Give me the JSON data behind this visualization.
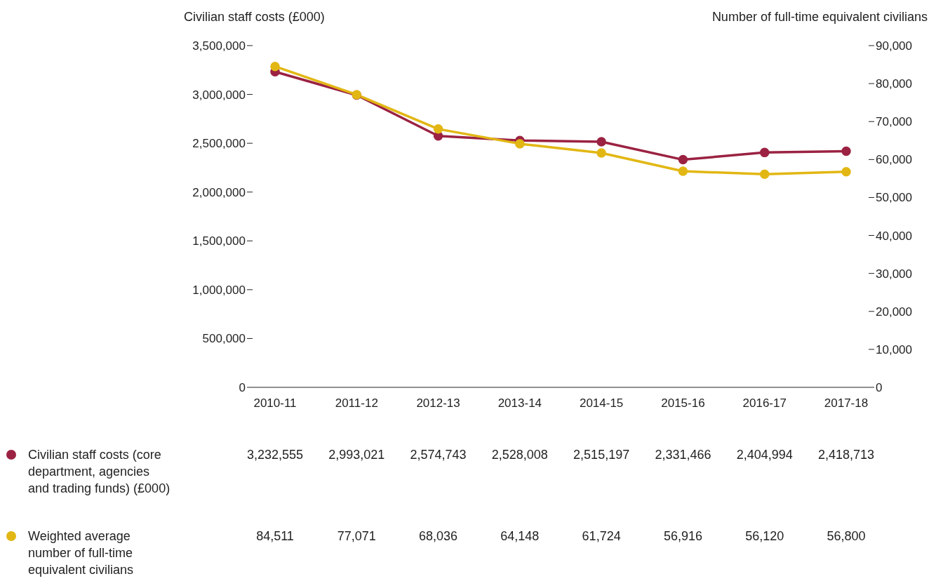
{
  "chart_data": {
    "type": "line",
    "ylabel": "Civilian staff costs (£000)",
    "y2label": "Number of full-time equivalent civilians",
    "categories": [
      "2010-11",
      "2011-12",
      "2012-13",
      "2013-14",
      "2014-15",
      "2015-16",
      "2016-17",
      "2017-18"
    ],
    "series": [
      {
        "name": "Civilian staff costs (core department, agencies and trading funds) (£000)",
        "color": "#9b2242",
        "values": [
          3232555,
          2993021,
          2574743,
          2528008,
          2515197,
          2331466,
          2404994,
          2418713
        ],
        "value_labels": [
          "3,232,555",
          "2,993,021",
          "2,574,743",
          "2,528,008",
          "2,515,197",
          "2,331,466",
          "2,404,994",
          "2,418,713"
        ]
      },
      {
        "name": "Weighted average number of full-time equivalent civilians",
        "color": "#e2b714",
        "axis": "y2",
        "values": [
          84511,
          77071,
          68036,
          64148,
          61724,
          56916,
          56120,
          56800
        ],
        "value_labels": [
          "84,511",
          "77,071",
          "68,036",
          "64,148",
          "61,724",
          "56,916",
          "56,120",
          "56,800"
        ]
      }
    ],
    "ylim": [
      0,
      3500000
    ],
    "yticks": [
      0,
      {
        "value": 500000,
        "label": "500,000"
      },
      {
        "value": 1000000,
        "label": "1,000,000"
      },
      {
        "value": 1500000,
        "label": "1,500,000"
      },
      {
        "value": 2000000,
        "label": "2,000,000"
      },
      {
        "value": 2500000,
        "label": "2,500,000"
      },
      {
        "value": 3000000,
        "label": "3,000,000"
      },
      {
        "value": 3500000,
        "label": "3,500,000"
      }
    ],
    "y2lim": [
      0,
      90000
    ],
    "y2ticks": [
      0,
      {
        "value": 10000,
        "label": "10,000"
      },
      {
        "value": 20000,
        "label": "20,000"
      },
      {
        "value": 30000,
        "label": "30,000"
      },
      {
        "value": 40000,
        "label": "40,000"
      },
      {
        "value": 50000,
        "label": "50,000"
      },
      {
        "value": 60000,
        "label": "60,000"
      },
      {
        "value": 70000,
        "label": "70,000"
      },
      {
        "value": 80000,
        "label": "80,000"
      },
      {
        "value": 90000,
        "label": "90,000"
      }
    ],
    "marker": "circle",
    "line_style": "solid",
    "legend": "bottom left"
  }
}
